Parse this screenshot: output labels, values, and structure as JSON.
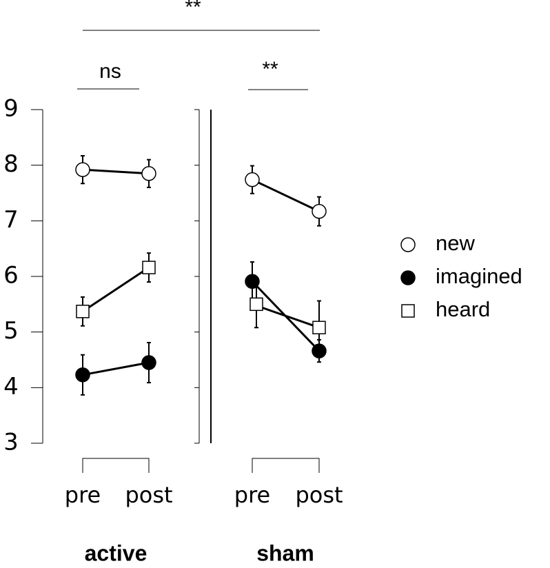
{
  "chart_data": {
    "type": "line",
    "ylim": [
      3,
      9
    ],
    "yticks": [
      3,
      4,
      5,
      6,
      7,
      8,
      9
    ],
    "categories": [
      "pre",
      "post"
    ],
    "series": [
      {
        "name": "new",
        "marker": "circle",
        "color": "#ffffff"
      },
      {
        "name": "imagined",
        "marker": "circle",
        "color": "#000000"
      },
      {
        "name": "heard",
        "marker": "square",
        "color": "#ffffff"
      }
    ],
    "panels": [
      {
        "label": "active",
        "values": [
          [
            7.92,
            7.85
          ],
          [
            4.23,
            4.45
          ],
          [
            5.37,
            6.16
          ]
        ],
        "errors": [
          [
            0.25,
            0.25
          ],
          [
            0.36,
            0.36
          ],
          [
            0.26,
            0.26
          ]
        ]
      },
      {
        "label": "sham",
        "values": [
          [
            7.74,
            7.17
          ],
          [
            5.91,
            4.66
          ],
          [
            5.5,
            5.08
          ]
        ],
        "errors": [
          [
            0.25,
            0.26
          ],
          [
            0.35,
            0.2
          ],
          [
            0.42,
            0.48
          ]
        ]
      }
    ],
    "annotations": [
      "**",
      "ns",
      "**"
    ]
  }
}
